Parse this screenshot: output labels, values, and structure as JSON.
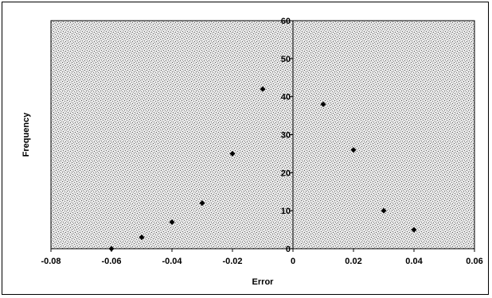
{
  "chart_data": {
    "type": "scatter",
    "title": "",
    "xlabel": "Error",
    "ylabel": "Frequency",
    "xlim": [
      -0.08,
      0.06
    ],
    "ylim": [
      0,
      60
    ],
    "xticks": [
      "-0.08",
      "-0.06",
      "-0.04",
      "-0.02",
      "0",
      "0.02",
      "0.04",
      "0.06"
    ],
    "yticks": [
      "0",
      "10",
      "20",
      "30",
      "40",
      "50",
      "60"
    ],
    "grid": false,
    "legend": "none",
    "marker_color": "#000000",
    "plot_background": "speckled-gray",
    "points": [
      {
        "x": -0.06,
        "y": 0
      },
      {
        "x": -0.05,
        "y": 3
      },
      {
        "x": -0.04,
        "y": 7
      },
      {
        "x": -0.03,
        "y": 12
      },
      {
        "x": -0.02,
        "y": 25
      },
      {
        "x": -0.01,
        "y": 42
      },
      {
        "x": 0.01,
        "y": 38
      },
      {
        "x": 0.02,
        "y": 26
      },
      {
        "x": 0.03,
        "y": 10
      },
      {
        "x": 0.04,
        "y": 5
      }
    ]
  }
}
